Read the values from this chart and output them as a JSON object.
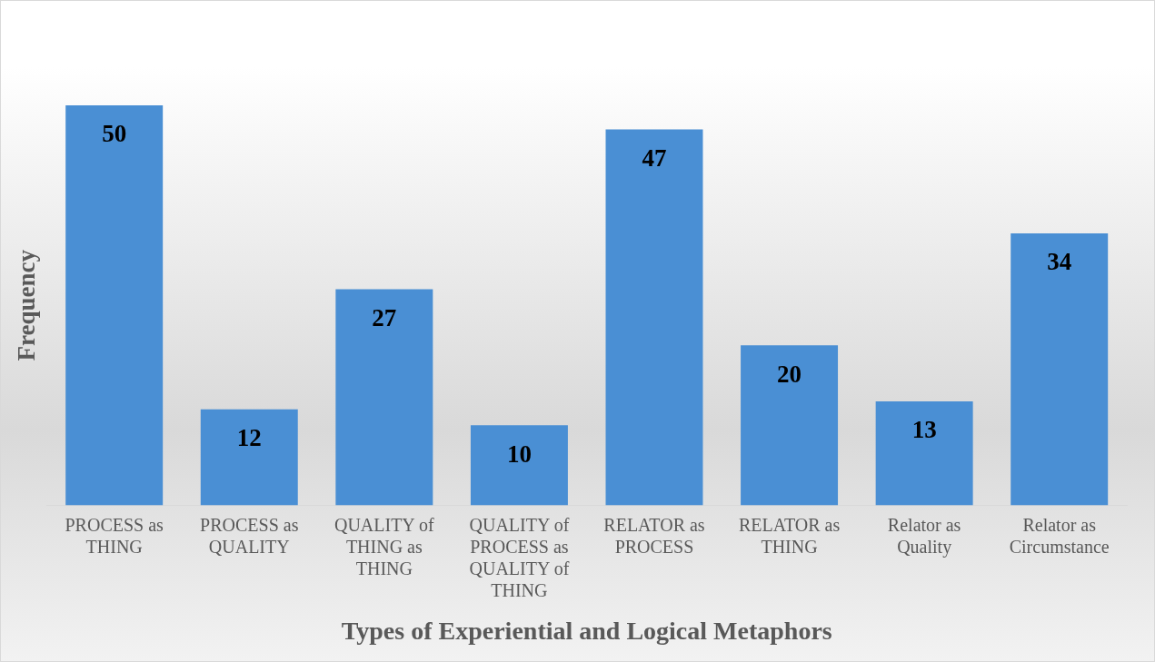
{
  "chart_data": {
    "type": "bar",
    "xlabel": "Types of Experiential and Logical Metaphors",
    "ylabel": "Frequency",
    "categories": [
      "PROCESS as THING",
      "PROCESS as QUALITY",
      "QUALITY of THING as THING",
      "QUALITY of PROCESS as QUALITY of THING",
      "RELATOR as PROCESS",
      "RELATOR as THING",
      "Relator as Quality",
      "Relator as Circumstance"
    ],
    "values": [
      50,
      12,
      27,
      10,
      47,
      20,
      13,
      34
    ],
    "color": "#4a8fd4",
    "data_labels": true,
    "grid": false,
    "legend": false
  }
}
